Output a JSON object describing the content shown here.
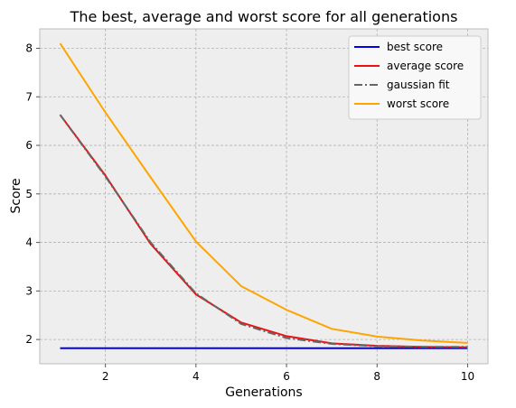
{
  "chart_data": {
    "type": "line",
    "title": "The best, average and worst score for all generations",
    "xlabel": "Generations",
    "ylabel": "Score",
    "x": [
      1,
      2,
      3,
      4,
      5,
      6,
      7,
      8,
      9,
      10
    ],
    "xlim": [
      0.55,
      10.45
    ],
    "ylim": [
      1.5,
      8.4
    ],
    "xticks": [
      2,
      4,
      6,
      8,
      10
    ],
    "yticks": [
      2,
      3,
      4,
      5,
      6,
      7,
      8
    ],
    "grid": true,
    "legend_position": "top-right",
    "background": "#eeeeee",
    "series": [
      {
        "name": "best score",
        "color": "#0000ee",
        "style": "solid",
        "values": [
          1.82,
          1.82,
          1.82,
          1.82,
          1.82,
          1.82,
          1.82,
          1.82,
          1.82,
          1.82
        ]
      },
      {
        "name": "average score",
        "color": "#ee1111",
        "style": "solid",
        "values": [
          6.63,
          5.38,
          3.97,
          2.93,
          2.35,
          2.07,
          1.92,
          1.87,
          1.85,
          1.84
        ]
      },
      {
        "name": "gaussian fit",
        "color": "#666666",
        "style": "dashdot",
        "values": [
          6.63,
          5.36,
          4.0,
          2.95,
          2.32,
          2.03,
          1.91,
          1.86,
          1.85,
          1.85
        ]
      },
      {
        "name": "worst score",
        "color": "#ffa500",
        "style": "solid",
        "values": [
          8.1,
          6.68,
          5.34,
          4.02,
          3.1,
          2.61,
          2.22,
          2.06,
          1.98,
          1.93
        ]
      }
    ]
  }
}
